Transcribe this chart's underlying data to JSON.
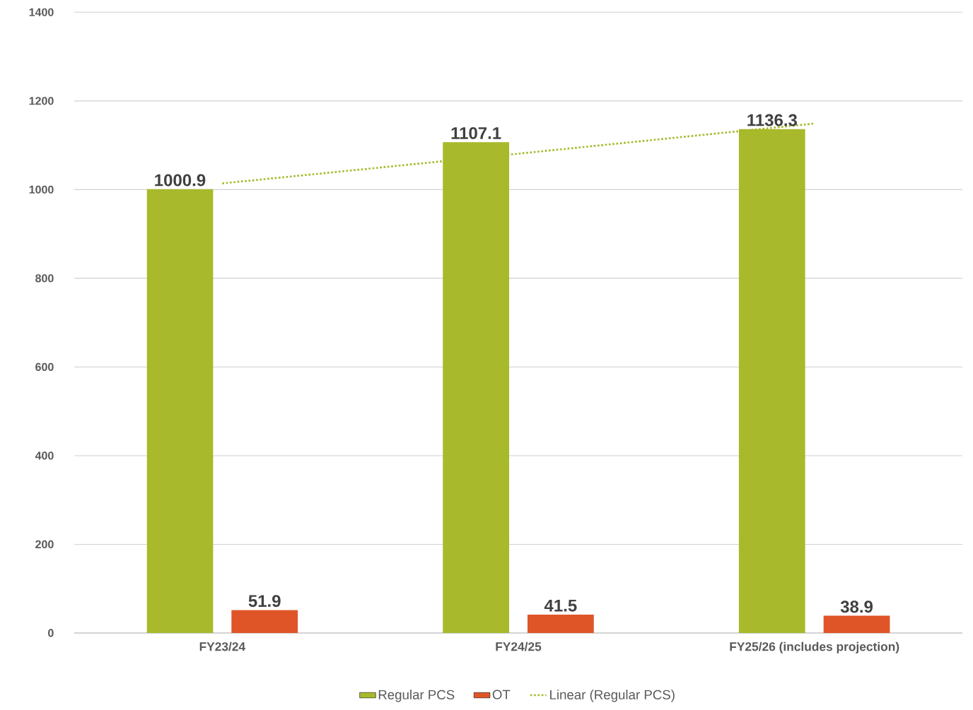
{
  "chart_data": {
    "type": "bar",
    "categories": [
      "FY23/24",
      "FY24/25",
      "FY25/26 (includes projection)"
    ],
    "series": [
      {
        "name": "Regular PCS",
        "color": "#a8b92b",
        "values": [
          1000.9,
          1107.1,
          1136.3
        ],
        "value_labels": [
          "1000.9",
          "1107.1",
          "1136.3"
        ]
      },
      {
        "name": "OT",
        "color": "#e05528",
        "values": [
          51.9,
          41.5,
          38.9
        ],
        "value_labels": [
          "51.9",
          "41.5",
          "38.9"
        ]
      },
      {
        "name": "Linear (Regular PCS)",
        "type": "line",
        "color": "#a8b92b",
        "line_style": "dotted",
        "marker": "none",
        "values": [
          1014,
          1081,
          1149
        ]
      }
    ],
    "ylim": [
      0,
      1400
    ],
    "yticks": [
      0,
      200,
      400,
      600,
      800,
      1000,
      1200,
      1400
    ],
    "grid": "y",
    "legend": "bottom"
  }
}
